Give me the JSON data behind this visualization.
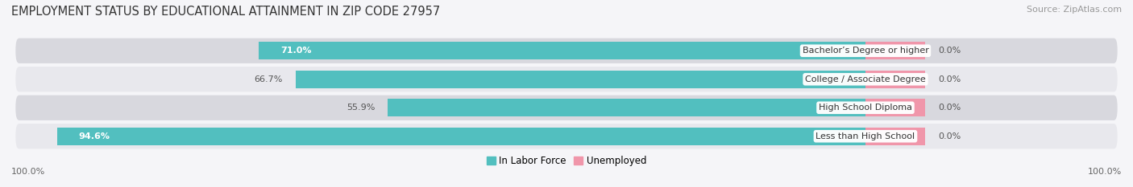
{
  "title": "EMPLOYMENT STATUS BY EDUCATIONAL ATTAINMENT IN ZIP CODE 27957",
  "source": "Source: ZipAtlas.com",
  "categories": [
    "Less than High School",
    "High School Diploma",
    "College / Associate Degree",
    "Bachelor’s Degree or higher"
  ],
  "labor_force_pct": [
    94.6,
    55.9,
    66.7,
    71.0
  ],
  "unemployed_pct": [
    0.0,
    0.0,
    0.0,
    0.0
  ],
  "labor_force_color": "#52bfbf",
  "unemployed_color": "#f096aa",
  "row_bg_colors": [
    "#e8e8ed",
    "#d8d8de"
  ],
  "title_fontsize": 10.5,
  "source_fontsize": 8,
  "bar_label_fontsize": 8,
  "cat_label_fontsize": 8,
  "legend_fontsize": 8.5,
  "bar_height": 0.62,
  "background_color": "#f5f5f8",
  "axis_label": "100.0%",
  "pink_bar_width": 7.0,
  "xlim_left": -100,
  "xlim_right": 30
}
